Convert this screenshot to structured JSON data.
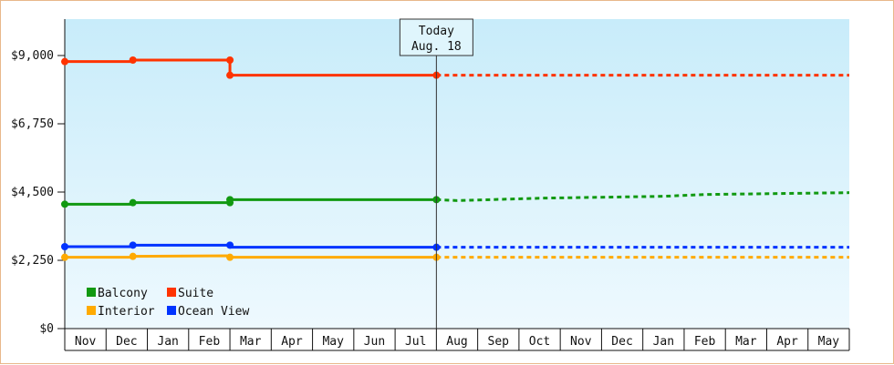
{
  "chart_data": {
    "type": "line",
    "months": [
      "Nov",
      "Dec",
      "Jan",
      "Feb",
      "Mar",
      "Apr",
      "May",
      "Jun",
      "Jul",
      "Aug",
      "Sep",
      "Oct",
      "Nov",
      "Dec",
      "Jan",
      "Feb",
      "Mar",
      "Apr",
      "May"
    ],
    "y_ticks": [
      "$0",
      "$2,250",
      "$4,500",
      "$6,750",
      "$9,000"
    ],
    "ylim": [
      0,
      10200
    ],
    "today": {
      "line1": "Today",
      "line2": "Aug. 18",
      "x": 9.0
    },
    "series": [
      {
        "name": "Balcony",
        "color": "#119911",
        "actual": [
          [
            0,
            4100
          ],
          [
            1.65,
            4100
          ],
          [
            1.65,
            4150
          ],
          [
            4.0,
            4150
          ],
          [
            4.0,
            4250
          ],
          [
            9.0,
            4250
          ]
        ],
        "points": [
          [
            0,
            4100
          ],
          [
            1.65,
            4150
          ],
          [
            4.0,
            4150
          ],
          [
            4.0,
            4250
          ],
          [
            9.0,
            4250
          ]
        ],
        "forecast": [
          [
            9.0,
            4250
          ],
          [
            9.5,
            4220
          ],
          [
            11.6,
            4300
          ],
          [
            14.5,
            4360
          ],
          [
            15.5,
            4420
          ],
          [
            19.0,
            4480
          ]
        ]
      },
      {
        "name": "Suite",
        "color": "#ff3300",
        "actual": [
          [
            0,
            8800
          ],
          [
            1.65,
            8800
          ],
          [
            1.65,
            8850
          ],
          [
            4.0,
            8850
          ],
          [
            4.0,
            8350
          ],
          [
            9.0,
            8350
          ]
        ],
        "points": [
          [
            0,
            8800
          ],
          [
            1.65,
            8850
          ],
          [
            4.0,
            8850
          ],
          [
            4.0,
            8350
          ],
          [
            9.0,
            8350
          ]
        ],
        "forecast": [
          [
            9.0,
            8350
          ],
          [
            19.0,
            8350
          ]
        ]
      },
      {
        "name": "Interior",
        "color": "#ffaa00",
        "actual": [
          [
            0,
            2350
          ],
          [
            1.65,
            2350
          ],
          [
            1.65,
            2380
          ],
          [
            4.0,
            2400
          ],
          [
            4.0,
            2350
          ],
          [
            9.0,
            2350
          ]
        ],
        "points": [
          [
            0,
            2350
          ],
          [
            1.65,
            2380
          ],
          [
            4.0,
            2350
          ],
          [
            9.0,
            2350
          ]
        ],
        "forecast": [
          [
            9.0,
            2350
          ],
          [
            19.0,
            2350
          ]
        ]
      },
      {
        "name": "Ocean View",
        "color": "#0033ff",
        "actual": [
          [
            0,
            2700
          ],
          [
            1.65,
            2700
          ],
          [
            1.65,
            2750
          ],
          [
            4.0,
            2750
          ],
          [
            4.0,
            2680
          ],
          [
            9.0,
            2680
          ]
        ],
        "points": [
          [
            0,
            2700
          ],
          [
            1.65,
            2750
          ],
          [
            4.0,
            2750
          ],
          [
            9.0,
            2680
          ]
        ],
        "forecast": [
          [
            9.0,
            2680
          ],
          [
            19.0,
            2680
          ]
        ]
      }
    ],
    "legend": [
      {
        "label": "Balcony",
        "color": "#119911"
      },
      {
        "label": "Suite",
        "color": "#ff3300"
      },
      {
        "label": "Interior",
        "color": "#ffaa00"
      },
      {
        "label": "Ocean View",
        "color": "#0033ff"
      }
    ]
  }
}
